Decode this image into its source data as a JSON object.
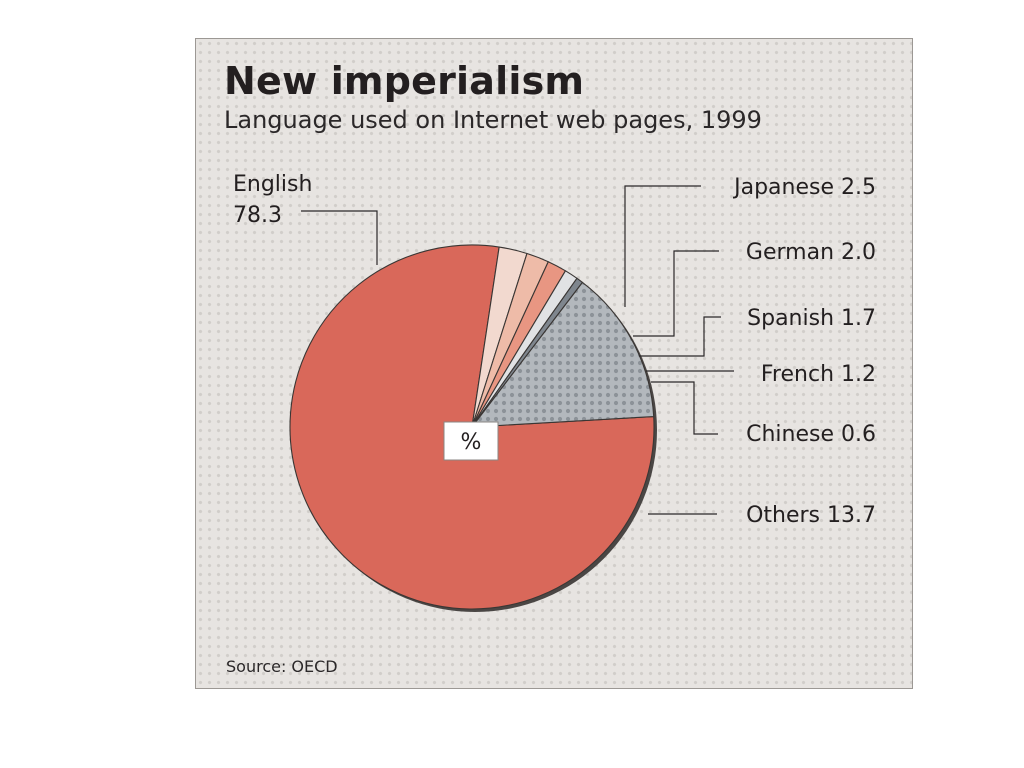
{
  "title": "New imperialism",
  "subtitle": "Language used on Internet web pages, 1999",
  "source": "Source: OECD",
  "center_label": "%",
  "colors": {
    "english": "#d9685a",
    "japanese": "#f2d9cf",
    "german": "#eebba8",
    "spanish": "#e89682",
    "french": "#e1e2e4",
    "chinese": "#7f868e",
    "others": "#b3b8bd"
  },
  "chart_data": {
    "type": "pie",
    "title": "New imperialism",
    "subtitle": "Language used on Internet web pages, 1999",
    "unit": "%",
    "slices": [
      {
        "label": "English",
        "value": 78.3
      },
      {
        "label": "Japanese",
        "value": 2.5
      },
      {
        "label": "German",
        "value": 2.0
      },
      {
        "label": "Spanish",
        "value": 1.7
      },
      {
        "label": "French",
        "value": 1.2
      },
      {
        "label": "Chinese",
        "value": 0.6
      },
      {
        "label": "Others",
        "value": 13.7
      }
    ],
    "label_texts": {
      "English": [
        "English",
        "78.3"
      ],
      "Japanese": [
        "Japanese 2.5"
      ],
      "German": [
        "German 2.0"
      ],
      "Spanish": [
        "Spanish 1.7"
      ],
      "French": [
        "French 1.2"
      ],
      "Chinese": [
        "Chinese 0.6"
      ],
      "Others": [
        "Others 13.7"
      ]
    }
  }
}
